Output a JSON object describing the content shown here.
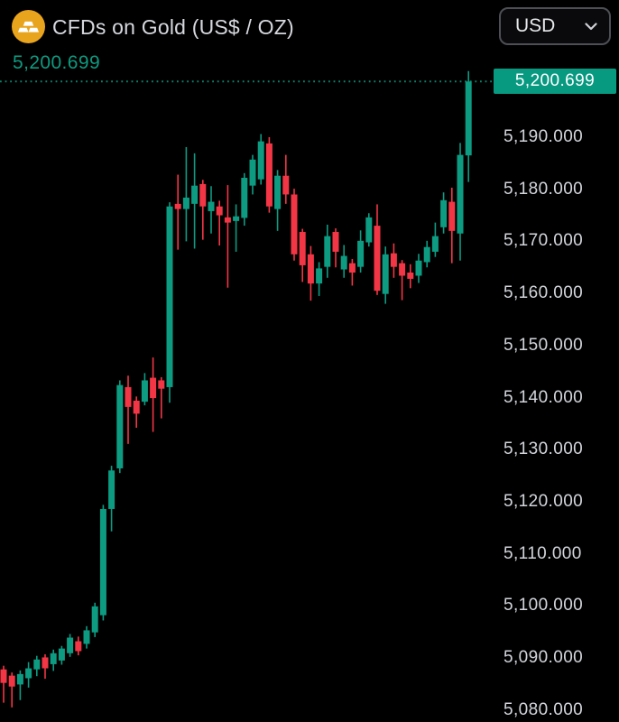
{
  "header": {
    "symbol_title": "CFDs on Gold (US$ / OZ)",
    "current_price": "5,200.699",
    "icon": "gold-ingots-icon",
    "currency_selector": {
      "value": "USD",
      "chevron_icon": "chevron-down-icon"
    }
  },
  "price_tag": {
    "value": "5,200.699"
  },
  "colors": {
    "background": "#000000",
    "up": "#0d9b82",
    "down": "#f23645",
    "title_text": "#d6d8de",
    "axis_text": "#d3d5db",
    "header_price_text": "#0d9b80",
    "price_line": "#0d8169",
    "tag_bg": "#089981",
    "tag_text": "#ffffff",
    "dropdown_border": "#4d4f55",
    "icon_bg": "#e9a41d",
    "icon_glyph": "#ffffff"
  },
  "y_axis": {
    "side": "right",
    "ticks": [
      {
        "label": "5,190.000",
        "value": 5190
      },
      {
        "label": "5,180.000",
        "value": 5180
      },
      {
        "label": "5,170.000",
        "value": 5170
      },
      {
        "label": "5,160.000",
        "value": 5160
      },
      {
        "label": "5,150.000",
        "value": 5150
      },
      {
        "label": "5,140.000",
        "value": 5140
      },
      {
        "label": "5,130.000",
        "value": 5130
      },
      {
        "label": "5,120.000",
        "value": 5120
      },
      {
        "label": "5,110.000",
        "value": 5110
      },
      {
        "label": "5,100.000",
        "value": 5100
      },
      {
        "label": "5,090.000",
        "value": 5090
      },
      {
        "label": "5,080.000",
        "value": 5080
      }
    ]
  },
  "chart_data": {
    "type": "candlestick",
    "title": "CFDs on Gold (US$ / OZ)",
    "last_price": 5200.699,
    "last_price_label": "5,200.699",
    "x_axis_visible": false,
    "grid": false,
    "ylim_visible": [
      5078,
      5204
    ],
    "price_line": {
      "style": "dotted",
      "value": 5200.699
    },
    "candles_format": [
      "open",
      "high",
      "low",
      "close"
    ],
    "candles": [
      [
        5087.8,
        5088.5,
        5081.4,
        5085.2
      ],
      [
        5086.6,
        5087.2,
        5080.5,
        5084.5
      ],
      [
        5084.9,
        5087.6,
        5081.9,
        5086.9
      ],
      [
        5086.1,
        5089.2,
        5084.3,
        5088.0
      ],
      [
        5087.8,
        5090.4,
        5086.5,
        5089.7
      ],
      [
        5090.1,
        5090.7,
        5086.0,
        5088.0
      ],
      [
        5088.8,
        5091.6,
        5087.5,
        5090.9
      ],
      [
        5089.5,
        5092.3,
        5088.7,
        5091.8
      ],
      [
        5090.9,
        5094.6,
        5090.2,
        5093.9
      ],
      [
        5093.2,
        5094.1,
        5090.5,
        5091.3
      ],
      [
        5092.7,
        5096.1,
        5091.8,
        5095.3
      ],
      [
        5094.9,
        5100.6,
        5094.0,
        5099.9
      ],
      [
        5098.2,
        5119.4,
        5097.2,
        5118.6
      ],
      [
        5118.6,
        5126.9,
        5114.3,
        5126.0
      ],
      [
        5126.4,
        5143.3,
        5125.5,
        5142.4
      ],
      [
        5142.0,
        5144.2,
        5131.1,
        5138.2
      ],
      [
        5139.4,
        5140.2,
        5134.2,
        5136.9
      ],
      [
        5139.2,
        5144.7,
        5138.5,
        5143.3
      ],
      [
        5143.8,
        5147.7,
        5133.4,
        5139.9
      ],
      [
        5143.3,
        5143.9,
        5136.0,
        5141.7
      ],
      [
        5142.0,
        5177.5,
        5139.0,
        5176.7
      ],
      [
        5177.2,
        5182.8,
        5168.4,
        5176.2
      ],
      [
        5176.2,
        5188.1,
        5170.0,
        5178.4
      ],
      [
        5177.2,
        5186.9,
        5168.6,
        5180.7
      ],
      [
        5181.0,
        5181.8,
        5170.3,
        5176.7
      ],
      [
        5175.8,
        5180.6,
        5171.5,
        5177.6
      ],
      [
        5176.7,
        5177.8,
        5169.2,
        5175.0
      ],
      [
        5174.6,
        5180.8,
        5161.1,
        5173.6
      ],
      [
        5173.9,
        5177.1,
        5168.0,
        5174.8
      ],
      [
        5174.5,
        5183.1,
        5173.0,
        5182.2
      ],
      [
        5180.7,
        5186.6,
        5179.0,
        5185.7
      ],
      [
        5181.9,
        5190.6,
        5180.9,
        5189.2
      ],
      [
        5188.8,
        5190.0,
        5175.5,
        5176.7
      ],
      [
        5176.2,
        5183.7,
        5172.0,
        5182.6
      ],
      [
        5182.6,
        5186.6,
        5177.2,
        5179.0
      ],
      [
        5179.0,
        5180.1,
        5166.3,
        5167.5
      ],
      [
        5171.8,
        5172.4,
        5162.2,
        5165.4
      ],
      [
        5167.5,
        5169.1,
        5158.6,
        5161.9
      ],
      [
        5161.9,
        5166.0,
        5159.5,
        5164.8
      ],
      [
        5165.1,
        5173.2,
        5163.0,
        5171.0
      ],
      [
        5171.8,
        5172.5,
        5165.0,
        5168.0
      ],
      [
        5164.6,
        5169.3,
        5163.0,
        5167.2
      ],
      [
        5165.8,
        5166.6,
        5161.5,
        5164.0
      ],
      [
        5165.1,
        5172.1,
        5164.0,
        5170.1
      ],
      [
        5169.8,
        5175.4,
        5169.0,
        5174.6
      ],
      [
        5173.0,
        5177.1,
        5159.7,
        5160.5
      ],
      [
        5159.9,
        5169.0,
        5158.0,
        5167.5
      ],
      [
        5167.7,
        5169.6,
        5163.0,
        5165.1
      ],
      [
        5165.8,
        5166.4,
        5158.7,
        5163.4
      ],
      [
        5164.0,
        5165.6,
        5161.0,
        5162.8
      ],
      [
        5163.4,
        5167.6,
        5162.0,
        5166.3
      ],
      [
        5166.0,
        5170.1,
        5165.0,
        5168.9
      ],
      [
        5168.0,
        5173.6,
        5167.0,
        5171.0
      ],
      [
        5172.7,
        5179.4,
        5171.5,
        5177.9
      ],
      [
        5177.6,
        5180.3,
        5165.8,
        5172.0
      ],
      [
        5171.5,
        5188.9,
        5166.3,
        5186.6
      ],
      [
        5186.5,
        5202.7,
        5181.4,
        5200.699
      ]
    ]
  }
}
